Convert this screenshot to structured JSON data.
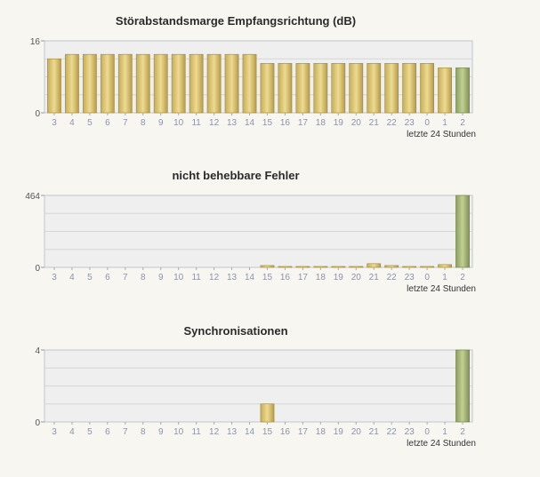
{
  "chart_data": [
    {
      "type": "bar",
      "title": "Störabstandsmarge Empfangsrichtung (dB)",
      "footnote": "letzte 24 Stunden",
      "categories": [
        "3",
        "4",
        "5",
        "6",
        "7",
        "8",
        "9",
        "10",
        "11",
        "12",
        "13",
        "14",
        "15",
        "16",
        "17",
        "18",
        "19",
        "20",
        "21",
        "22",
        "23",
        "0",
        "1",
        "2"
      ],
      "values": [
        12,
        13,
        13,
        13,
        13,
        13,
        13,
        13,
        13,
        13,
        13,
        13,
        11,
        11,
        11,
        11,
        11,
        11,
        11,
        11,
        11,
        11,
        10,
        10
      ],
      "ylim": [
        0,
        16
      ],
      "yticks": [
        "0",
        "16"
      ],
      "grid": true,
      "colors": {
        "bar": "#d8c272",
        "last_bar": "#a8b878",
        "plot_bg": "#efefef",
        "grid": "#d6d6d6"
      }
    },
    {
      "type": "bar",
      "title": "nicht behebbare Fehler",
      "footnote": "letzte 24 Stunden",
      "categories": [
        "3",
        "4",
        "5",
        "6",
        "7",
        "8",
        "9",
        "10",
        "11",
        "12",
        "13",
        "14",
        "15",
        "16",
        "17",
        "18",
        "19",
        "20",
        "21",
        "22",
        "23",
        "0",
        "1",
        "2"
      ],
      "values": [
        0,
        0,
        0,
        0,
        0,
        0,
        0,
        0,
        0,
        0,
        0,
        0,
        12,
        6,
        6,
        6,
        6,
        6,
        24,
        12,
        6,
        6,
        18,
        464
      ],
      "ylim": [
        0,
        464
      ],
      "yticks": [
        "0",
        "464"
      ],
      "grid": true,
      "colors": {
        "bar": "#d8c272",
        "last_bar": "#a8b878",
        "plot_bg": "#efefef",
        "grid": "#d6d6d6"
      }
    },
    {
      "type": "bar",
      "title": "Synchronisationen",
      "footnote": "letzte 24 Stunden",
      "categories": [
        "3",
        "4",
        "5",
        "6",
        "7",
        "8",
        "9",
        "10",
        "11",
        "12",
        "13",
        "14",
        "15",
        "16",
        "17",
        "18",
        "19",
        "20",
        "21",
        "22",
        "23",
        "0",
        "1",
        "2"
      ],
      "values": [
        0,
        0,
        0,
        0,
        0,
        0,
        0,
        0,
        0,
        0,
        0,
        0,
        1,
        0,
        0,
        0,
        0,
        0,
        0,
        0,
        0,
        0,
        0,
        4
      ],
      "ylim": [
        0,
        4
      ],
      "yticks": [
        "0",
        "4"
      ],
      "grid": true,
      "colors": {
        "bar": "#d8c272",
        "last_bar": "#a8b878",
        "plot_bg": "#efefef",
        "grid": "#d6d6d6"
      }
    }
  ]
}
